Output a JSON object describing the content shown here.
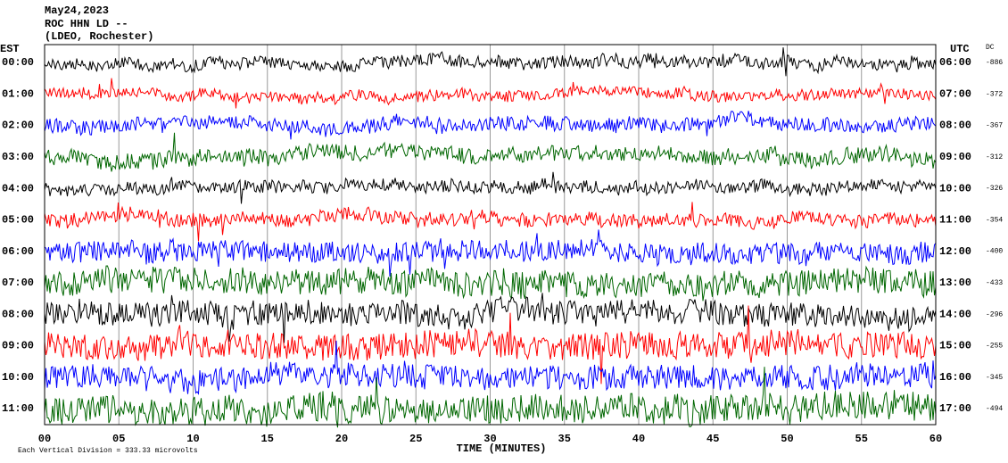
{
  "header": {
    "date": "May24,2023",
    "station": "ROC HHN LD --",
    "network": "(LDEO, Rochester)"
  },
  "left_axis": {
    "title": "EST",
    "labels": [
      "00:00",
      "01:00",
      "02:00",
      "03:00",
      "04:00",
      "05:00",
      "06:00",
      "07:00",
      "08:00",
      "09:00",
      "10:00",
      "11:00"
    ]
  },
  "right_axis": {
    "title": "UTC",
    "labels": [
      "06:00",
      "07:00",
      "08:00",
      "09:00",
      "10:00",
      "11:00",
      "12:00",
      "13:00",
      "14:00",
      "15:00",
      "16:00",
      "17:00"
    ]
  },
  "dc": {
    "title": "DC",
    "values": [
      -886,
      -372,
      -367,
      -312,
      -326,
      -354,
      -400,
      -433,
      -296,
      -255,
      -345,
      -494
    ]
  },
  "x_axis": {
    "ticks": [
      "00",
      "05",
      "10",
      "15",
      "20",
      "25",
      "30",
      "35",
      "40",
      "45",
      "50",
      "55",
      "60"
    ],
    "label": "TIME (MINUTES)"
  },
  "footer": "Each Vertical Division = 333.33 microvolts"
}
